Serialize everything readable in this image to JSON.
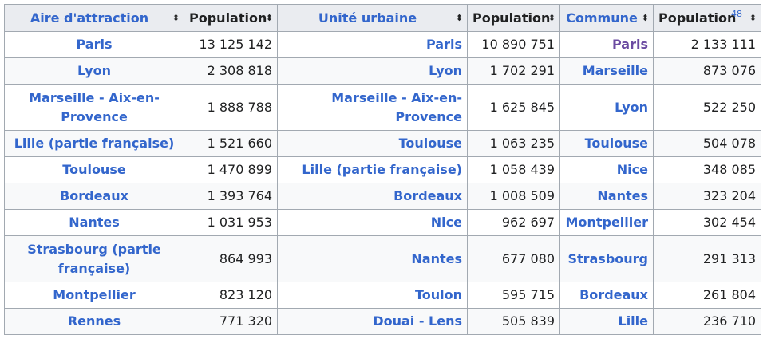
{
  "headers": [
    {
      "label": "Aire d'attraction",
      "sort_icon": "sort-icon"
    },
    {
      "label": "Population",
      "sort_icon": "sort-icon"
    },
    {
      "label": "Unité urbaine",
      "sort_icon": "sort-icon"
    },
    {
      "label": "Population",
      "sort_icon": "sort-icon"
    },
    {
      "label": "Commune",
      "sort_icon": "sort-icon"
    },
    {
      "label": "Population",
      "sort_icon": "sort-icon",
      "footnote": "48"
    }
  ],
  "rows": [
    {
      "aire": "Paris",
      "pop_aire": "13 125 142",
      "unite": "Paris",
      "pop_unite": "10 890 751",
      "commune": "Paris",
      "pop_commune": "2 133 111"
    },
    {
      "aire": "Lyon",
      "pop_aire": "2 308 818",
      "unite": "Lyon",
      "pop_unite": "1 702 291",
      "commune": "Marseille",
      "pop_commune": "873 076"
    },
    {
      "aire_line1": "Marseille - Aix-en-",
      "aire_line2": "Provence",
      "pop_aire": "1 888 788",
      "unite": "Marseille - Aix-en-Provence",
      "pop_unite": "1 625 845",
      "commune": "Lyon",
      "pop_commune": "522 250"
    },
    {
      "aire": "Lille (partie française)",
      "pop_aire": "1 521 660",
      "unite": "Toulouse",
      "pop_unite": "1 063 235",
      "commune": "Toulouse",
      "pop_commune": "504 078"
    },
    {
      "aire": "Toulouse",
      "pop_aire": "1 470 899",
      "unite": "Lille (partie française)",
      "pop_unite": "1 058 439",
      "commune": "Nice",
      "pop_commune": "348 085"
    },
    {
      "aire": "Bordeaux",
      "pop_aire": "1 393 764",
      "unite": "Bordeaux",
      "pop_unite": "1 008 509",
      "commune": "Nantes",
      "pop_commune": "323 204"
    },
    {
      "aire": "Nantes",
      "pop_aire": "1 031 953",
      "unite": "Nice",
      "pop_unite": "962 697",
      "commune": "Montpellier",
      "pop_commune": "302 454"
    },
    {
      "aire_line1": "Strasbourg (partie",
      "aire_line2": "française)",
      "pop_aire": "864 993",
      "unite": "Nantes",
      "pop_unite": "677 080",
      "commune": "Strasbourg",
      "pop_commune": "291 313"
    },
    {
      "aire": "Montpellier",
      "pop_aire": "823 120",
      "unite": "Toulon",
      "pop_unite": "595 715",
      "commune": "Bordeaux",
      "pop_commune": "261 804"
    },
    {
      "aire": "Rennes",
      "pop_aire": "771 320",
      "unite": "Douai - Lens",
      "pop_unite": "505 839",
      "commune": "Lille",
      "pop_commune": "236 710"
    }
  ],
  "sort_glyph": "⬍"
}
